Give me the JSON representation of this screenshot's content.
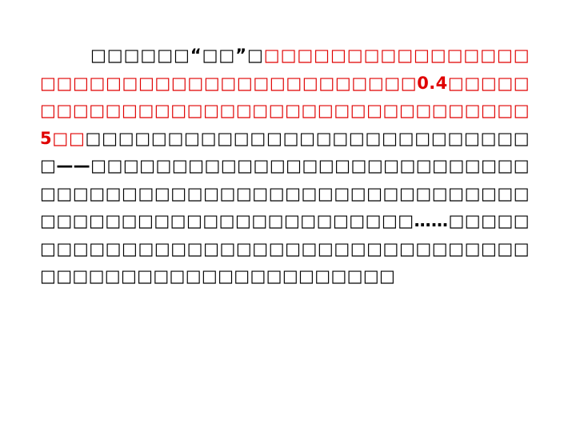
{
  "passage": {
    "segments": [
      {
        "text": "□□□□□□“□□”□",
        "color": "#000000"
      },
      {
        "text": "□□□□□□□□□□□□□□□□□□□□□□□□□□□□□□□□□□□□□□□0.4□□□□□□□□□□□□□□□□□□□□□□□□□□□□□□□□□□□5□□",
        "color": "#e00000"
      },
      {
        "text": "□□□□□□□□□□□□□□□□□□□□□□□□□□□□——□□□□□□□□□□□□□□□□□□□□□□□□□□□□□□□□□□□□□□□□□□□□□□□□□□□□□□□□□□□□□□□□□□□□□□□□□□□□□□□□……□□□□□□□□□□□□□□□□□□□□□□□□□□□□□□□□□□□□□□□□□□□□□□□□□□□□□□□□□",
        "color": "#000000"
      }
    ]
  }
}
